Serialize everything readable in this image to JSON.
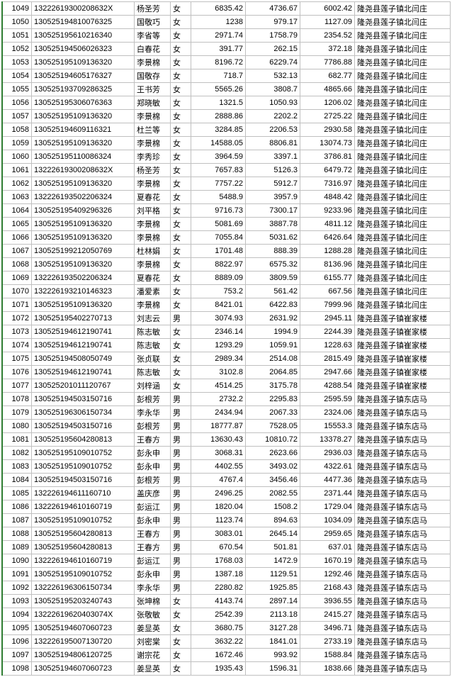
{
  "columns": [
    "idx",
    "id",
    "name",
    "sex",
    "v1",
    "v2",
    "v3",
    "addr"
  ],
  "rows": [
    [
      1049,
      "13222619300208632X",
      "杨圣芳",
      "女",
      "6835.42",
      "4736.67",
      "6002.42",
      "隆尧县莲子镇北闫庄"
    ],
    [
      1050,
      "130525194810076325",
      "国敬巧",
      "女",
      "1238",
      "979.17",
      "1127.09",
      "隆尧县莲子镇北闫庄"
    ],
    [
      1051,
      "130525195610216340",
      "李省等",
      "女",
      "2971.74",
      "1758.79",
      "2354.52",
      "隆尧县莲子镇北闫庄"
    ],
    [
      1052,
      "130525194506026323",
      "白春花",
      "女",
      "391.77",
      "262.15",
      "372.18",
      "隆尧县莲子镇北闫庄"
    ],
    [
      1053,
      "130525195109136320",
      "李景棉",
      "女",
      "8196.72",
      "6229.74",
      "7786.88",
      "隆尧县莲子镇北闫庄"
    ],
    [
      1054,
      "130525194605176327",
      "国敬存",
      "女",
      "718.7",
      "532.13",
      "682.77",
      "隆尧县莲子镇北闫庄"
    ],
    [
      1055,
      "130525193709286325",
      "王书芳",
      "女",
      "5565.26",
      "3808.7",
      "4865.66",
      "隆尧县莲子镇北闫庄"
    ],
    [
      1056,
      "130525195306076363",
      "郑晓敏",
      "女",
      "1321.5",
      "1050.93",
      "1206.02",
      "隆尧县莲子镇北闫庄"
    ],
    [
      1057,
      "130525195109136320",
      "李景棉",
      "女",
      "2888.86",
      "2202.2",
      "2725.22",
      "隆尧县莲子镇北闫庄"
    ],
    [
      1058,
      "130525194609116321",
      "杜兰等",
      "女",
      "3284.85",
      "2206.53",
      "2930.58",
      "隆尧县莲子镇北闫庄"
    ],
    [
      1059,
      "130525195109136320",
      "李景棉",
      "女",
      "14588.05",
      "8806.81",
      "13074.73",
      "隆尧县莲子镇北闫庄"
    ],
    [
      1060,
      "130525195110086324",
      "李秀珍",
      "女",
      "3964.59",
      "3397.1",
      "3786.81",
      "隆尧县莲子镇北闫庄"
    ],
    [
      1061,
      "13222619300208632X",
      "杨圣芳",
      "女",
      "7657.83",
      "5126.3",
      "6479.72",
      "隆尧县莲子镇北闫庄"
    ],
    [
      1062,
      "130525195109136320",
      "李景棉",
      "女",
      "7757.22",
      "5912.7",
      "7316.97",
      "隆尧县莲子镇北闫庄"
    ],
    [
      1063,
      "132226193502206324",
      "夏春花",
      "女",
      "5488.9",
      "3957.9",
      "4848.42",
      "隆尧县莲子镇北闫庄"
    ],
    [
      1064,
      "130525195409296326",
      "刘平格",
      "女",
      "9716.73",
      "7300.17",
      "9233.96",
      "隆尧县莲子镇北闫庄"
    ],
    [
      1065,
      "130525195109136320",
      "李景棉",
      "女",
      "5081.69",
      "3887.78",
      "4811.12",
      "隆尧县莲子镇北闫庄"
    ],
    [
      1066,
      "130525195109136320",
      "李景棉",
      "女",
      "7055.84",
      "5031.62",
      "6426.64",
      "隆尧县莲子镇北闫庄"
    ],
    [
      1067,
      "130525199212050769",
      "杜林娟",
      "女",
      "1701.48",
      "888.39",
      "1288.28",
      "隆尧县莲子镇北闫庄"
    ],
    [
      1068,
      "130525195109136320",
      "李景棉",
      "女",
      "8822.97",
      "6575.32",
      "8136.96",
      "隆尧县莲子镇北闫庄"
    ],
    [
      1069,
      "132226193502206324",
      "夏春花",
      "女",
      "8889.09",
      "3809.59",
      "6155.77",
      "隆尧县莲子镇北闫庄"
    ],
    [
      1070,
      "132226193210146323",
      "潘爱素",
      "女",
      "753.2",
      "561.42",
      "667.56",
      "隆尧县莲子镇北闫庄"
    ],
    [
      1071,
      "130525195109136320",
      "李景棉",
      "女",
      "8421.01",
      "6422.83",
      "7999.96",
      "隆尧县莲子镇北闫庄"
    ],
    [
      1072,
      "130525195402270713",
      "刘志云",
      "男",
      "3074.93",
      "2631.92",
      "2945.11",
      "隆尧县莲子镇崔家楼"
    ],
    [
      1073,
      "130525194612190741",
      "陈志敏",
      "女",
      "2346.14",
      "1994.9",
      "2244.39",
      "隆尧县莲子镇崔家楼"
    ],
    [
      1074,
      "130525194612190741",
      "陈志敏",
      "女",
      "1293.29",
      "1059.91",
      "1228.63",
      "隆尧县莲子镇崔家楼"
    ],
    [
      1075,
      "130525194508050749",
      "张贞联",
      "女",
      "2989.34",
      "2514.08",
      "2815.49",
      "隆尧县莲子镇崔家楼"
    ],
    [
      1076,
      "130525194612190741",
      "陈志敏",
      "女",
      "3102.8",
      "2064.85",
      "2947.66",
      "隆尧县莲子镇崔家楼"
    ],
    [
      1077,
      "130525201011120767",
      "刘梓涵",
      "女",
      "4514.25",
      "3175.78",
      "4288.54",
      "隆尧县莲子镇崔家楼"
    ],
    [
      1078,
      "130525194503150716",
      "彭根芳",
      "男",
      "2732.2",
      "2295.83",
      "2595.59",
      "隆尧县莲子镇东店马"
    ],
    [
      1079,
      "130525196306150734",
      "李永华",
      "男",
      "2434.94",
      "2067.33",
      "2324.06",
      "隆尧县莲子镇东店马"
    ],
    [
      1080,
      "130525194503150716",
      "彭根芳",
      "男",
      "18777.87",
      "7528.05",
      "15553.3",
      "隆尧县莲子镇东店马"
    ],
    [
      1081,
      "130525195604280813",
      "王春方",
      "男",
      "13630.43",
      "10810.72",
      "13378.27",
      "隆尧县莲子镇东店马"
    ],
    [
      1082,
      "130525195109010752",
      "彭永申",
      "男",
      "3068.31",
      "2623.66",
      "2936.03",
      "隆尧县莲子镇东店马"
    ],
    [
      1083,
      "130525195109010752",
      "彭永申",
      "男",
      "4402.55",
      "3493.02",
      "4322.61",
      "隆尧县莲子镇东店马"
    ],
    [
      1084,
      "130525194503150716",
      "彭根芳",
      "男",
      "4767.4",
      "3456.46",
      "4477.36",
      "隆尧县莲子镇东店马"
    ],
    [
      1085,
      "132226194611160710",
      "盖庆彦",
      "男",
      "2496.25",
      "2082.55",
      "2371.44",
      "隆尧县莲子镇东店马"
    ],
    [
      1086,
      "132226194610160719",
      "彭运江",
      "男",
      "1820.04",
      "1508.2",
      "1729.04",
      "隆尧县莲子镇东店马"
    ],
    [
      1087,
      "130525195109010752",
      "彭永申",
      "男",
      "1123.74",
      "894.63",
      "1034.09",
      "隆尧县莲子镇东店马"
    ],
    [
      1088,
      "130525195604280813",
      "王春方",
      "男",
      "3083.01",
      "2645.14",
      "2959.65",
      "隆尧县莲子镇东店马"
    ],
    [
      1089,
      "130525195604280813",
      "王春方",
      "男",
      "670.54",
      "501.81",
      "637.01",
      "隆尧县莲子镇东店马"
    ],
    [
      1090,
      "132226194610160719",
      "彭运江",
      "男",
      "1768.03",
      "1472.9",
      "1670.19",
      "隆尧县莲子镇东店马"
    ],
    [
      1091,
      "130525195109010752",
      "彭永申",
      "男",
      "1387.18",
      "1129.51",
      "1292.46",
      "隆尧县莲子镇东店马"
    ],
    [
      1092,
      "132226196306150734",
      "李永华",
      "男",
      "2280.82",
      "1925.85",
      "2168.43",
      "隆尧县莲子镇东店马"
    ],
    [
      1093,
      "130525195203240743",
      "张坤棉",
      "女",
      "4143.74",
      "2897.14",
      "3936.55",
      "隆尧县莲子镇东店马"
    ],
    [
      1094,
      "13222619620403074X",
      "张敬敏",
      "女",
      "2542.39",
      "2113.18",
      "2415.27",
      "隆尧县莲子镇东店马"
    ],
    [
      1095,
      "130525194607060723",
      "姜显英",
      "女",
      "3680.75",
      "3127.28",
      "3496.71",
      "隆尧县莲子镇东店马"
    ],
    [
      1096,
      "132226195007130720",
      "刘密棠",
      "女",
      "3632.22",
      "1841.01",
      "2733.19",
      "隆尧县莲子镇东店马"
    ],
    [
      1097,
      "130525194806120725",
      "谢宗花",
      "女",
      "1672.46",
      "993.92",
      "1588.84",
      "隆尧县莲子镇东店马"
    ],
    [
      1098,
      "130525194607060723",
      "姜显英",
      "女",
      "1935.43",
      "1596.31",
      "1838.66",
      "隆尧县莲子镇东店马"
    ]
  ]
}
